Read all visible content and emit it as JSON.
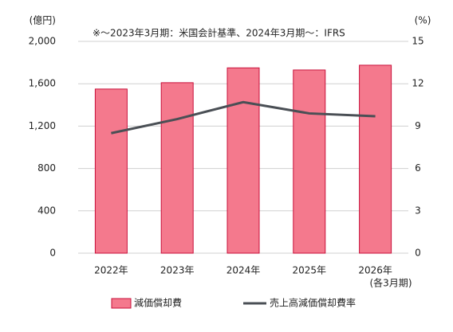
{
  "chart_data": {
    "type": "bar",
    "note": "※～2023年3月期：米国会計基準、2024年3月期～：IFRS",
    "y_label": "(億円)",
    "y2_label": "(%)",
    "x_label": "(各3月期)",
    "categories": [
      "2022年",
      "2023年",
      "2024年",
      "2025年",
      "2026年"
    ],
    "series": [
      {
        "name": "減価償却費",
        "type": "bar",
        "color": "#f4798d",
        "edge": "#c8103a",
        "values": [
          1550,
          1610,
          1750,
          1730,
          1775
        ]
      },
      {
        "name": "売上高減価償却費率",
        "type": "line",
        "axis": "y2",
        "color": "#4a4f55",
        "values": [
          8.5,
          9.5,
          10.7,
          9.9,
          9.7
        ]
      }
    ],
    "ylim": [
      0,
      2000
    ],
    "yticks": [
      0,
      400,
      800,
      {
        "value": 1200,
        "label": "1,200"
      },
      {
        "value": 1600,
        "label": "1,600"
      },
      {
        "value": 2000,
        "label": "2,000"
      }
    ],
    "y2lim": [
      0,
      15
    ],
    "y2ticks": [
      0,
      3,
      6,
      9,
      12,
      15
    ],
    "grid": true,
    "legend": "bottom"
  }
}
